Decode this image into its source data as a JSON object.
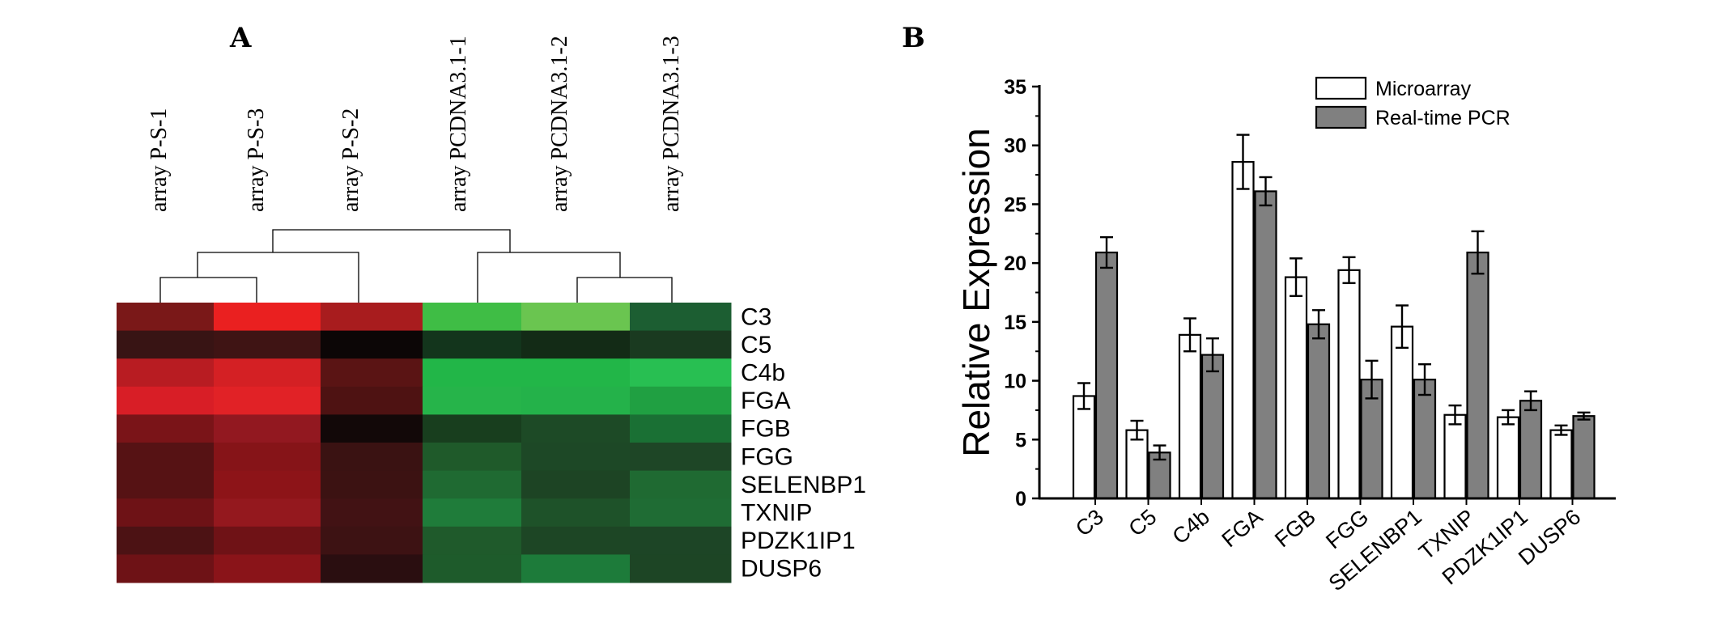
{
  "chart_data": [
    {
      "type": "heatmap",
      "panel_label": "A",
      "columns": [
        "array P-S-1",
        "array P-S-3",
        "array P-S-2",
        "array PCDNA3.1-1",
        "array PCDNA3.1-2",
        "array PCDNA3.1-3"
      ],
      "rows": [
        "C3",
        "C5",
        "C4b",
        "FGA",
        "FGB",
        "FGG",
        "SELENBP1",
        "TXNIP",
        "PDZK1IP1",
        "DUSP6"
      ],
      "cell_colors": [
        [
          "#7a1818",
          "#ea2020",
          "#a81c1e",
          "#3fbd45",
          "#6ac550",
          "#1c5e32"
        ],
        [
          "#381414",
          "#3f1414",
          "#0c0606",
          "#13351c",
          "#132b16",
          "#1a3a20"
        ],
        [
          "#b81c22",
          "#d42024",
          "#5a1414",
          "#22b648",
          "#22b648",
          "#28bf52"
        ],
        [
          "#d81e26",
          "#e12226",
          "#4e1212",
          "#26b44a",
          "#24b24a",
          "#20a042"
        ],
        [
          "#7a1418",
          "#921820",
          "#120808",
          "#183e1e",
          "#1d4a26",
          "#1a7034"
        ],
        [
          "#561214",
          "#861418",
          "#3a1212",
          "#1f5a2a",
          "#1d4826",
          "#1e4626"
        ],
        [
          "#561214",
          "#8d1418",
          "#3c1212",
          "#1f6a32",
          "#1d4424",
          "#1f6a32"
        ],
        [
          "#6e1216",
          "#94181e",
          "#421214",
          "#1f7c3a",
          "#1e5229",
          "#1f6c34"
        ],
        [
          "#4c1214",
          "#6f1216",
          "#3d1213",
          "#1f5a2b",
          "#1d4625",
          "#1d4526"
        ],
        [
          "#6e1216",
          "#8a1419",
          "#2a0e10",
          "#1e5b2b",
          "#1d7b3a",
          "#1d4525"
        ]
      ]
    },
    {
      "type": "bar",
      "panel_label": "B",
      "categories": [
        "C3",
        "C5",
        "C4b",
        "FGA",
        "FGB",
        "FGG",
        "SELENBP1",
        "TXNIP",
        "PDZK1IP1",
        "DUSP6"
      ],
      "series": [
        {
          "name": "Microarray",
          "color": "#ffffff",
          "values": [
            8.7,
            5.8,
            13.9,
            28.6,
            18.8,
            19.4,
            14.6,
            7.1,
            6.9,
            5.8
          ],
          "errors": [
            1.1,
            0.8,
            1.4,
            2.3,
            1.6,
            1.1,
            1.8,
            0.8,
            0.6,
            0.4
          ]
        },
        {
          "name": "Real-time  PCR",
          "color": "#808080",
          "values": [
            20.9,
            3.9,
            12.2,
            26.1,
            14.8,
            10.1,
            10.1,
            20.9,
            8.3,
            7.0
          ],
          "errors": [
            1.3,
            0.6,
            1.4,
            1.2,
            1.2,
            1.6,
            1.3,
            1.8,
            0.8,
            0.3
          ]
        }
      ],
      "ylabel": "Relative Expression",
      "xlabel": "",
      "ylim": [
        0,
        35
      ],
      "yticks": [
        "0",
        "5",
        "10",
        "15",
        "20",
        "25",
        "30",
        "35"
      ],
      "legend_position": "top-right",
      "grid": false
    }
  ]
}
